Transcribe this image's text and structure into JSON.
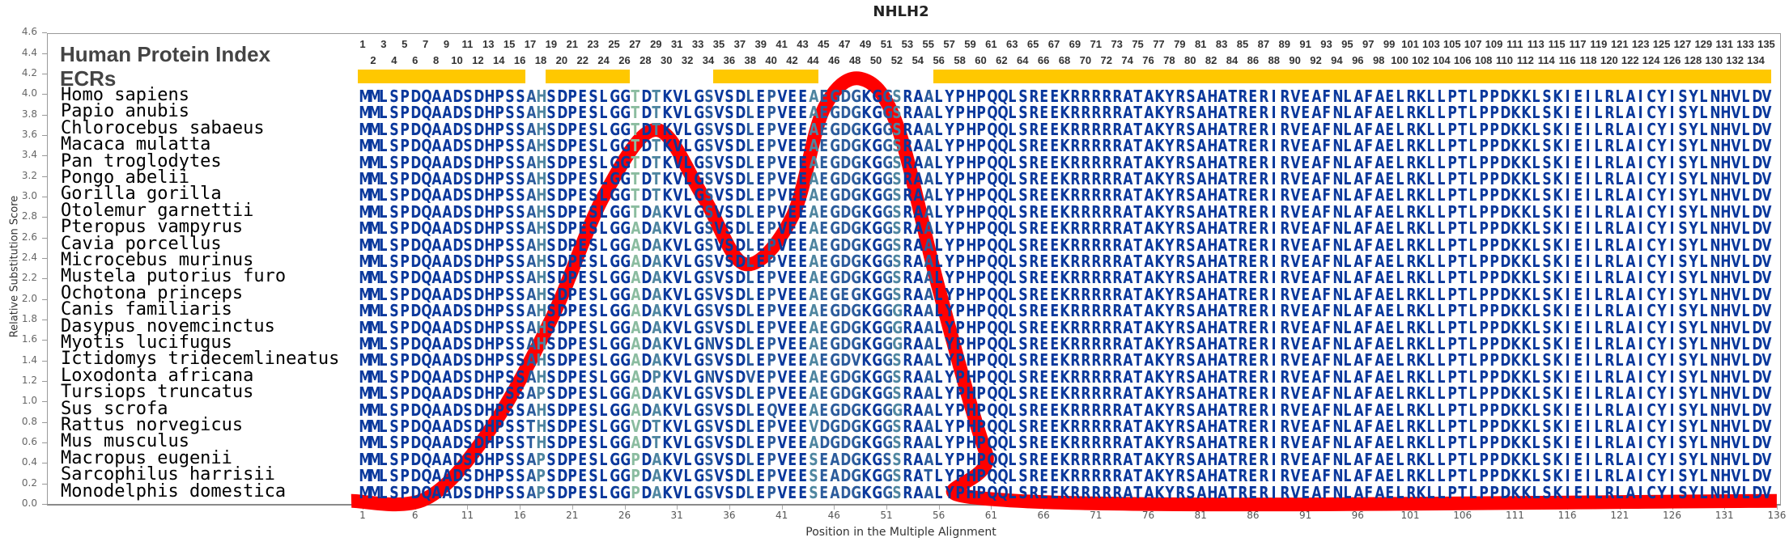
{
  "title": "NHLH2",
  "header": {
    "protein_index_label": "Human Protein Index",
    "ecr_label": "ECRs"
  },
  "alignment_length": 135,
  "ecrs": [
    [
      1,
      16
    ],
    [
      19,
      26
    ],
    [
      35,
      44
    ],
    [
      56,
      135
    ]
  ],
  "colors": {
    "ecr": "#ffc800",
    "curve": "#ff0000",
    "conserved": "#0a389c",
    "mostly_conserved": "#2c5c9c",
    "variable": "#4f86a0",
    "highly_variable": "#8bbca0"
  },
  "species": [
    {
      "name": "Homo sapiens",
      "sequence": "MMLSPDQAADSDHPSSAHSDPESLGGTDTKVLGSVSDLEPVEEAEGDGKGGSRAALYPHPQQLSREEKRRRRRATAKYRSAHATRERIRVEAFNLAFAELRKLLPTLPPDKKLSKIEILRLAICYISYLNHVLDV"
    },
    {
      "name": "Papio anubis",
      "sequence": "MMLSPDQAADSDHPSSAHSDPESLGGTDTKVLGSVSDLEPVEEAEGDGKGGSRAALYPHPQQLSREEKRRRRRATAKYRSAHATRERIRVEAFNLAFAELRKLLPTLPPDKKLSKIEILRLAICYISYLNHVLDV"
    },
    {
      "name": "Chlorocebus sabaeus",
      "sequence": "MMLSPDQAADSDHPSSAHSDPESLGGTDTKVLGSVSDLEPVEEAEGDGKGGSRAALYPHPQQLSREEKRRRRRATAKYRSAHATRERIRVEAFNLAFAELRKLLPTLPPDKKLSKIEILRLAICYISYLNHVLDV"
    },
    {
      "name": "Macaca mulatta",
      "sequence": "MMLSPDQAADSDHPSSAHSDPESLGGTDTKVLGSVSDLEPVEEAEGDGKGGSRAALYPHPQQLSREEKRRRRRATAKYRSAHATRERIRVEAFNLAFAELRKLLPTLPPDKKLSKIEILRLAICYISYLNHVLDV"
    },
    {
      "name": "Pan troglodytes",
      "sequence": "MMLSPDQAADSDHPSSAHSDPESLGGTDTKVLGSVSDLEPVEEAEGDGKGGSRAALYPHPQQLSREEKRRRRRATAKYRSAHATRERIRVEAFNLAFAELRKLLPTLPPDKKLSKIEILRLAICYISYLNHVLDV"
    },
    {
      "name": "Pongo abelii",
      "sequence": "MMLSPDQAADSDHPSSAHSDPESLGGTDTKVLGSVSDLEPVEEAEGDGKGGSRAALYPHPQQLSREEKRRRRRATAKYRSAHATRERIRVEAFNLAFAELRKLLPTLPPDKKLSKIEILRLAICYISYLNHVLDV"
    },
    {
      "name": "Gorilla gorilla",
      "sequence": "MMLSPDQAADSDHPSSAHSDPESLGGTDTKVLGSVSDLEPVEEAEGDGKGGSRAALYPHPQQLSREEKRRRRRATAKYRSAHATRERIRVEAFNLAFAELRKLLPTLPPDKKLSKIEILRLAICYISYLNHVLDV"
    },
    {
      "name": "Otolemur garnettii",
      "sequence": "MMLSPDQAADSDHPSSAHSDPESLGGTDAKVLGSVSDLEPVEEAEGDGKGGSRAALYPHPQQLSREEKRRRRRATAKYRSAHATRERIRVEAFNLAFAELRKLLPTLPPDKKLSKIEILRLAICYISYLNHVLDV"
    },
    {
      "name": "Pteropus vampyrus",
      "sequence": "MMLSPDQAADSDHPSSAHSDPESLGGADAKVLGSVSDLEPVEEAEGDGKGGSRAALYPHPQQLSREEKRRRRRATAKYRSAHATRERIRVEAFNLAFAELRKLLPTLPPDKKLSKIEILRLAICYISYLNHVLDV"
    },
    {
      "name": "Cavia porcellus",
      "sequence": "MMLSPDQAADSDHPSSAHSDPESLGGADAKVLGSVSDLEPVEEAEGDGKGGSRAALYPHPQQLSREEKRRRRRATAKYRSAHATRERIRVEAFNLAFAELRKLLPTLPPDKKLSKIEILRLAICYISYLNHVLDV"
    },
    {
      "name": "Microcebus murinus",
      "sequence": "MMLSPDQAADSDHPSSAHSDPESLGGADAKVLGSVSDLEPVEEAEGDGKGGSRAALYPHPQQLSREEKRRRRRATAKYRSAHATRERIRVEAFNLAFAELRKLLPTLPPDKKLSKIEILRLAICYISYLNHVLDV"
    },
    {
      "name": "Mustela putorius furo",
      "sequence": "MMLSPDQAADSDHPSSAHSDPESLGGADAKVLGSVSDLEPVEEAEGDGKGGSRAALYPHPQQLSREEKRRRRRATAKYRSAHATRERIRVEAFNLAFAELRKLLPTLPPDKKLSKIEILRLAICYISYLNHVLDV"
    },
    {
      "name": "Ochotona princeps",
      "sequence": "MMLSPDQAADSDHPSSAHSDPESLGGADAKVLGSVSDLEPVEEAEGEGKGGSRAALYPHPQQLSREEKRRRRRATAKYRSAHATRERIRVEAFNLAFAELRKLLPTLPPDKKLSKIEILRLAICYISYLNHVLDV"
    },
    {
      "name": "Canis familiaris",
      "sequence": "MMLSPDQAADSDHPSSAHSDPESLGGADAKVLGSVSDLEPVEEAEGDGKGGGRAALYPHPQQLSREEKRRRRRATAKYRSAHATRERIRVEAFNLAFAELRKLLPTLPPDKKLSKIEILRLAICYISYLNHVLDV"
    },
    {
      "name": "Dasypus novemcinctus",
      "sequence": "MMLSPDQAADSDHPSSAHSDPESLGGADAKVLGSVSDLEPVEEAEGDGKGGGRAALYPHPQQLSREEKRRRRRATAKYRSAHATRERIRVEAFNLAFAELRKLLPTLPPDKKLSKIEILRLAICYISYLNHVLDV"
    },
    {
      "name": "Myotis lucifugus",
      "sequence": "MMLSPDQAADSDHPSSAHSDPESLGGADAKVLGNVSDLEPVEEAEGDGKGGGRAALYPHPQQLSREEKRRRRRATAKYRSAHATRERIRVEAFNLAFAELRKLLPTLPPDKKLSKIEILRLAICYISYLNHVLDV"
    },
    {
      "name": "Ictidomys tridecemlineatus",
      "sequence": "MMLSPDQAADSDHPSSAHSDPESLGGADAKVLGSVSDLEPVEEAEGDVKGGSRAALYPHPQQLSREEKRRRRRATAKYRSAHATRERIRVEAFNLAFAELRKLLPTLPPDKKLSKIEILRLAICYISYLNHVLDV"
    },
    {
      "name": "Loxodonta africana",
      "sequence": "MMLSPDQAADSDHPSSAHSDPESLGGADPKVLGNVSDVEPVEEAEGDGKGGSRAALYPHPQQLSREEKRRRRRATAKYRSAHATRERIRVEAFNLAFAELRKLLPTLPPDKKLSKIEILRLAICYISYLNHVLDV"
    },
    {
      "name": "Tursiops truncatus",
      "sequence": "MMLSPDQAADSDHPSSAPSDPESLGGADAKVLGSVSDLEPVEEAEGDGKGGSRAALYPHPQQLSREEKRRRRRATAKYRSAHATRERIRVEAFNLAFAELRKLLPTLPPDKKLSKIEILRLAICYISYLNHVLDV"
    },
    {
      "name": "Sus scrofa",
      "sequence": "MMLSPDQAADSDHPSSAHSDPESLGGADAKVLGSVSDLEQVEEAEGDGKGGGRAALYPHPQQLSREEKRRRRRATAKYRSAHATRERIRVEAFNLAFAELRKLLPTLPPDKKLSKIEILRLAICYISYLNHVLDV"
    },
    {
      "name": "Rattus norvegicus",
      "sequence": "MMLSPDQAADSDHPSSTHSDPESLGGVDTKVLGSVSDLEPVEEVDGDGKGGSRAALYPHPQQLSREEKRRRRRATAKYRSAHATRERIRVEAFNLAFAELRKLLPTLPPDKKLSKIEILRLAICYISYLNHVLDV"
    },
    {
      "name": "Mus musculus",
      "sequence": "MMLSPDQAADSDHPSSTHSDPESLGGADTKVLGSVSDLEPVEEADGDGKGGSRAALYPHPQQLSREEKRRRRRATAKYRSAHATRERIRVEAFNLAFAELRKLLPTLPPDKKLSKIEILRLAICYISYLNHVLDV"
    },
    {
      "name": "Macropus eugenii",
      "sequence": "MMLSPDQAADSDHPSSAPSDPESLGGPDAKVLGSVSDLEPVEESEADGKGSSRAALYPHPQQLSREEKRRRRRATAKYRSAHATRERIRVEAFNLAFAELRKLLPTLPPDKKLSKIEILRLAICYISYLNHVLDV"
    },
    {
      "name": "Sarcophilus harrisii",
      "sequence": "MMLSPDQAADSDHPSSAPSDPESLGGPDAKVLGSVSDLEPVEESEADGKGGSRATLYPHPQQLSREEKRRRRRATAKYRSAHATRERIRVEAFNLAFAELRKLLPTLPPDKKLSKIEILRLAICYISYLNHVLDV"
    },
    {
      "name": "Monodelphis domestica",
      "sequence": "MMLSPDQAADSDHPSSAPSDPESLGGPDAKVLGSVSDLEPVEESEADGKGGSRAALYPHPQQLSREEKRRRRRATAKYRSAHATRERIRVEAFNLAFAELRKLLPTLPPDKKLSKIEILRLAICYISYLNHVLDV"
    }
  ],
  "chart_data": {
    "type": "line",
    "title": "NHLH2",
    "xlabel": "Position in the Multiple Alignment",
    "ylabel": "Relative Substitution Score",
    "xlim": [
      1,
      136
    ],
    "ylim": [
      0,
      4.6
    ],
    "xticks": [
      1,
      6,
      11,
      16,
      21,
      26,
      31,
      36,
      41,
      46,
      51,
      56,
      61,
      66,
      71,
      76,
      81,
      86,
      91,
      96,
      101,
      106,
      111,
      116,
      121,
      126,
      131,
      136
    ],
    "yticks": [
      "0.0",
      "0.2",
      "0.4",
      "0.6",
      "0.8",
      "1.0",
      "1.2",
      "1.4",
      "1.6",
      "1.8",
      "2.0",
      "2.2",
      "2.4",
      "2.6",
      "2.8",
      "3.0",
      "3.2",
      "3.4",
      "3.6",
      "3.8",
      "4.0",
      "4.2",
      "4.4",
      "4.6"
    ],
    "grid": false,
    "series": [
      {
        "x": [
          1,
          7,
          13,
          19,
          24,
          29,
          33.5,
          37.5,
          42,
          45,
          48.5,
          52,
          56,
          60.5,
          63.5,
          136
        ],
        "y": [
          0.03,
          0.05,
          0.7,
          1.8,
          3.0,
          3.65,
          3.0,
          2.34,
          2.8,
          3.85,
          4.15,
          3.7,
          2.1,
          0.5,
          0.03,
          0.03
        ],
        "color": "#ff0000"
      }
    ]
  }
}
